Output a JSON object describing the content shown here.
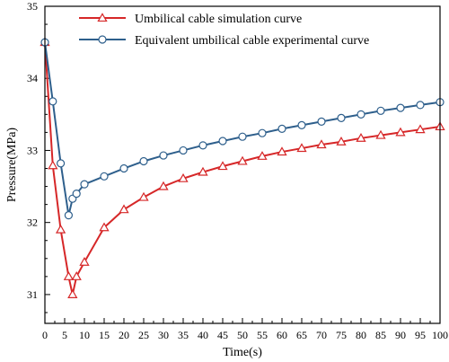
{
  "chart_data": {
    "type": "line",
    "xlabel": "Time(s)",
    "ylabel": "Pressure(MPa)",
    "xlim": [
      0,
      100
    ],
    "ylim": [
      30.6,
      35
    ],
    "x_ticks": [
      0,
      5,
      10,
      15,
      20,
      25,
      30,
      35,
      40,
      45,
      50,
      55,
      60,
      65,
      70,
      75,
      80,
      85,
      90,
      95,
      100
    ],
    "y_ticks": [
      31,
      32,
      33,
      34,
      35
    ],
    "grid": false,
    "legend_position": "top-left",
    "series": [
      {
        "name": "Umbilical cable simulation curve",
        "color": "#d62728",
        "marker": "triangle",
        "x": [
          0,
          2,
          4,
          6,
          7,
          8,
          10,
          15,
          20,
          25,
          30,
          35,
          40,
          45,
          50,
          55,
          60,
          65,
          70,
          75,
          80,
          85,
          90,
          95,
          100
        ],
        "y": [
          34.5,
          32.79,
          31.9,
          31.25,
          31.0,
          31.25,
          31.45,
          31.93,
          32.18,
          32.35,
          32.5,
          32.61,
          32.7,
          32.78,
          32.85,
          32.92,
          32.98,
          33.03,
          33.08,
          33.12,
          33.17,
          33.21,
          33.25,
          33.29,
          33.33
        ]
      },
      {
        "name": "Equivalent umbilical cable experimental curve",
        "color": "#2e5f8c",
        "marker": "circle",
        "x": [
          0,
          2,
          4,
          6,
          7,
          8,
          10,
          15,
          20,
          25,
          30,
          35,
          40,
          45,
          50,
          55,
          60,
          65,
          70,
          75,
          80,
          85,
          90,
          95,
          100
        ],
        "y": [
          34.5,
          33.68,
          32.82,
          32.1,
          32.33,
          32.4,
          32.53,
          32.64,
          32.75,
          32.85,
          32.93,
          33.0,
          33.07,
          33.13,
          33.19,
          33.24,
          33.3,
          33.35,
          33.4,
          33.45,
          33.5,
          33.55,
          33.59,
          33.63,
          33.67
        ]
      }
    ]
  }
}
